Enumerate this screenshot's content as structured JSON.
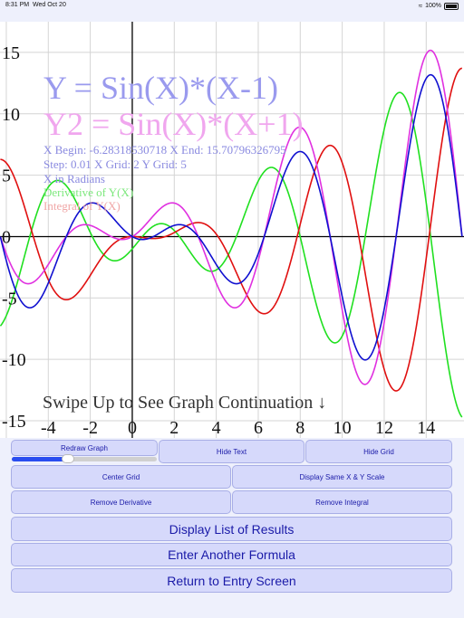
{
  "status_bar": {
    "time": "8:31 PM",
    "date": "Wed Oct 20",
    "battery": "100%"
  },
  "graph": {
    "formula_y": "Y = Sin(X)*(X-1)",
    "formula_y2": "Y2 = Sin(X)*(X+1)",
    "range_line": "X Begin: -6.28318530718   X End: 15.70796326795",
    "step_line": "Step: 0.01   X Grid: 2   Y Grid: 5",
    "units_line": "X in Radians",
    "derivative_line": "Derivative of Y(X)",
    "integral_line": "Integral of Y(X)",
    "swipe_hint": "Swipe Up to See Graph Continuation ↓",
    "colors": {
      "y": "#1010d0",
      "y2": "#e030e0",
      "derivative": "#20e020",
      "integral": "#e01010",
      "formula_y_text": "#9a9aee",
      "formula_y2_text": "#f0a6ee",
      "info_text": "#8a8ae0",
      "derivative_text": "#7ee87e",
      "integral_text": "#f0a6a6"
    }
  },
  "chart_data": {
    "type": "line",
    "title": "Y = Sin(X)*(X-1)",
    "x_range": [
      -6.28318530718,
      15.70796326795
    ],
    "xlim": [
      -6.3,
      15.8
    ],
    "ylim": [
      -16.4,
      17.5
    ],
    "x_step": 0.01,
    "x_grid": 2,
    "y_grid": 5,
    "x_tick_labels": [
      "-4",
      "-2",
      "0",
      "2",
      "4",
      "6",
      "8",
      "10",
      "12",
      "14"
    ],
    "y_tick_labels": [
      "15",
      "10",
      "5",
      "0",
      "-5",
      "-10",
      "-15"
    ],
    "x_ticks": [
      -4,
      -2,
      0,
      2,
      4,
      6,
      8,
      10,
      12,
      14
    ],
    "y_ticks": [
      15,
      10,
      5,
      0,
      -5,
      -10,
      -15
    ],
    "series": [
      {
        "name": "Y = Sin(X)*(X-1)",
        "formula": "sin(x)*(x-1)"
      },
      {
        "name": "Y2 = Sin(X)*(X+1)",
        "formula": "sin(x)*(x+1)"
      },
      {
        "name": "Derivative of Y(X)",
        "formula": "cos(x)*(x-1)+sin(x)"
      },
      {
        "name": "Integral of Y(X)",
        "formula": "-(x-1)*cos(x)+sin(x)-1"
      }
    ]
  },
  "buttons": {
    "redraw_graph": "Redraw Graph",
    "hide_text": "Hide Text",
    "hide_grid": "Hide Grid",
    "center_grid": "Center Grid",
    "display_same_scale": "Display Same X & Y Scale",
    "remove_derivative": "Remove Derivative",
    "remove_integral": "Remove Integral",
    "display_list": "Display List of Results",
    "enter_formula": "Enter Another Formula",
    "return_entry": "Return to Entry Screen"
  },
  "redraw_slider": {
    "value": 0.39
  }
}
